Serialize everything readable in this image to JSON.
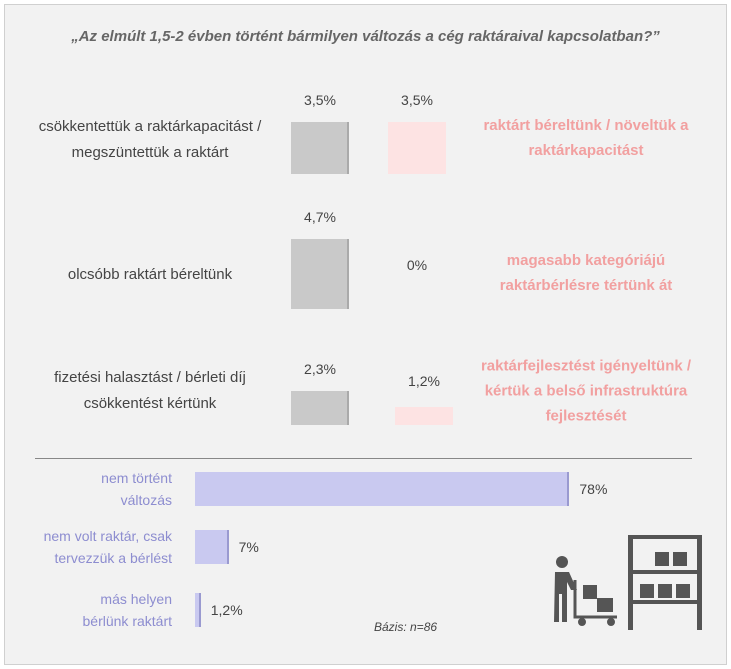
{
  "title": "„Az elmúlt 1,5-2 évben történt bármilyen változás a cég raktáraival kapcsolatban?”",
  "note": "Bázis: n=86",
  "chart_data": [
    {
      "type": "column",
      "series": [
        {
          "color": "#c9c9c9",
          "categories": [
            "csökkentettük a raktárkapacitást / megszüntettük a raktárt",
            "olcsóbb raktárt béreltünk",
            "fizetési halasztást / bérleti díj csökkentést kértünk"
          ],
          "values": [
            3.5,
            4.7,
            2.3
          ],
          "value_labels": [
            "3,5%",
            "4,7%",
            "2,3%"
          ]
        },
        {
          "color": "#fde3e3",
          "categories": [
            "raktárt béreltünk / növeltük a raktárkapacitást",
            "magasabb kategóriájú raktárbérlésre tértünk át",
            "raktárfejlesztést igényeltünk / kértük a belső infrastruktúra fejlesztését"
          ],
          "values": [
            3.5,
            0,
            1.2
          ],
          "value_labels": [
            "3,5%",
            "0%",
            "1,2%"
          ]
        }
      ]
    },
    {
      "type": "bar",
      "color": "#c9c9f0",
      "categories": [
        "nem történt változás",
        "nem volt raktár, csak tervezzük a bérlést",
        "más helyen bérlünk raktárt"
      ],
      "values": [
        78,
        7,
        1.2
      ],
      "value_labels": [
        "78%",
        "7%",
        "1,2%"
      ]
    }
  ]
}
